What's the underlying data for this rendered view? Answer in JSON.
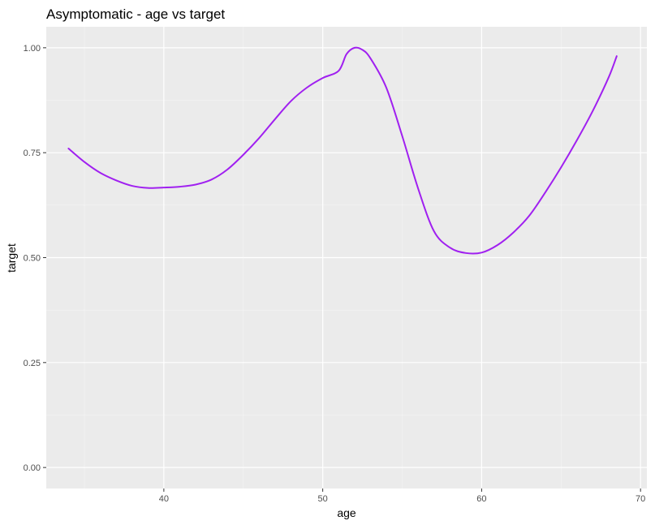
{
  "chart_data": {
    "type": "line",
    "title": "Asymptomatic - age vs target",
    "xlabel": "age",
    "ylabel": "target",
    "xlim": [
      32.6,
      70.4
    ],
    "ylim": [
      -0.05,
      1.05
    ],
    "x_ticks": [
      40,
      50,
      60,
      70
    ],
    "x_tick_labels": [
      "40",
      "50",
      "60",
      "70"
    ],
    "y_ticks": [
      0,
      0.25,
      0.5,
      0.75,
      1.0
    ],
    "y_tick_labels": [
      "0.00",
      "0.25",
      "0.50",
      "0.75",
      "1.00"
    ],
    "grid": true,
    "background": "#ebebeb",
    "line_color": "#a020f0",
    "series": [
      {
        "x": [
          34,
          35,
          36,
          37,
          38,
          39,
          40,
          41,
          42,
          43,
          44,
          45,
          46,
          47,
          48,
          49,
          50,
          51,
          51.5,
          52,
          52.5,
          53,
          54,
          55,
          56,
          57,
          58,
          59,
          60,
          61,
          62,
          63,
          64,
          65,
          66,
          67,
          68,
          68.5
        ],
        "y": [
          0.76,
          0.728,
          0.702,
          0.684,
          0.671,
          0.666,
          0.667,
          0.669,
          0.674,
          0.686,
          0.71,
          0.745,
          0.785,
          0.83,
          0.873,
          0.905,
          0.928,
          0.945,
          0.985,
          1.0,
          0.995,
          0.975,
          0.905,
          0.79,
          0.665,
          0.563,
          0.524,
          0.511,
          0.512,
          0.53,
          0.56,
          0.6,
          0.655,
          0.715,
          0.78,
          0.85,
          0.93,
          0.98
        ]
      }
    ]
  }
}
